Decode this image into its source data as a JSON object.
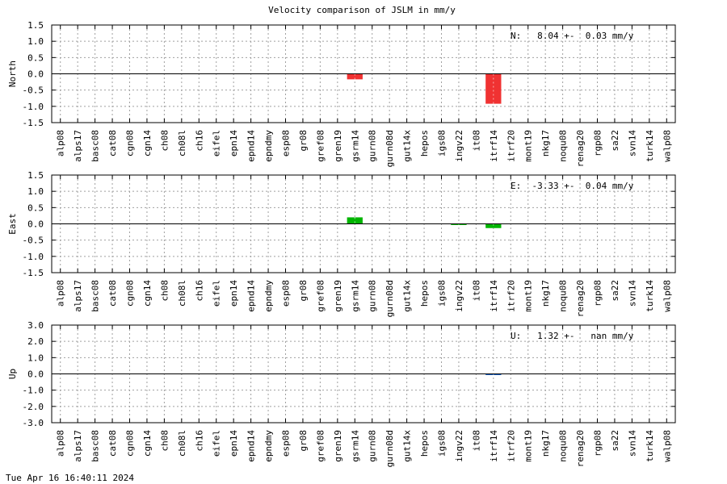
{
  "title": "Velocity comparison of JSLM in mm/y",
  "timestamp": "Tue Apr 16 16:40:11 2024",
  "categories": [
    "alp08",
    "alps17",
    "basc08",
    "cat08",
    "cgn08",
    "cgn14",
    "ch08",
    "ch08l",
    "ch16",
    "eifel",
    "epn14",
    "epnd14",
    "epndmy",
    "esp08",
    "gr08",
    "gref08",
    "gren19",
    "gsrm14",
    "gurn08",
    "gurn08d",
    "gut14x",
    "hepos",
    "igs08",
    "ingv22",
    "it08",
    "itrf14",
    "itrf20",
    "mont19",
    "nkg17",
    "noqu08",
    "renag20",
    "rgp08",
    "sa22",
    "svn14",
    "turk14",
    "walp08"
  ],
  "chart_data": [
    {
      "type": "bar",
      "ylabel": "North",
      "ylim": [
        -1.5,
        1.5
      ],
      "yticks": [
        "1.5",
        "1.0",
        "0.5",
        "0.0",
        "-0.5",
        "-1.0",
        "-1.5"
      ],
      "ytick_values": [
        1.5,
        1.0,
        0.5,
        0.0,
        -0.5,
        -1.0,
        -1.5
      ],
      "annotation": "N:   8.04 +-  0.03 mm/y",
      "color": "#f03232",
      "values": {
        "gsrm14": -0.17,
        "itrf14": -0.92
      },
      "grid": true
    },
    {
      "type": "bar",
      "ylabel": "East",
      "ylim": [
        -1.5,
        1.5
      ],
      "yticks": [
        "1.5",
        "1.0",
        "0.5",
        "0.0",
        "-0.5",
        "-1.0",
        "-1.5"
      ],
      "ytick_values": [
        1.5,
        1.0,
        0.5,
        0.0,
        -0.5,
        -1.0,
        -1.5
      ],
      "annotation": "E:  -3.33 +-  0.04 mm/y",
      "color": "#00b400",
      "values": {
        "gsrm14": 0.2,
        "ingv22": -0.03,
        "itrf14": -0.13
      },
      "grid": true
    },
    {
      "type": "bar",
      "ylabel": "Up",
      "ylim": [
        -3.0,
        3.0
      ],
      "yticks": [
        "3.0",
        "2.0",
        "1.0",
        "0.0",
        "-1.0",
        "-2.0",
        "-3.0"
      ],
      "ytick_values": [
        3.0,
        2.0,
        1.0,
        0.0,
        -1.0,
        -2.0,
        -3.0
      ],
      "annotation": "U:   1.32 +-   nan mm/y",
      "color": "#1e64c8",
      "values": {
        "itrf14": -0.04
      },
      "grid": true
    }
  ]
}
